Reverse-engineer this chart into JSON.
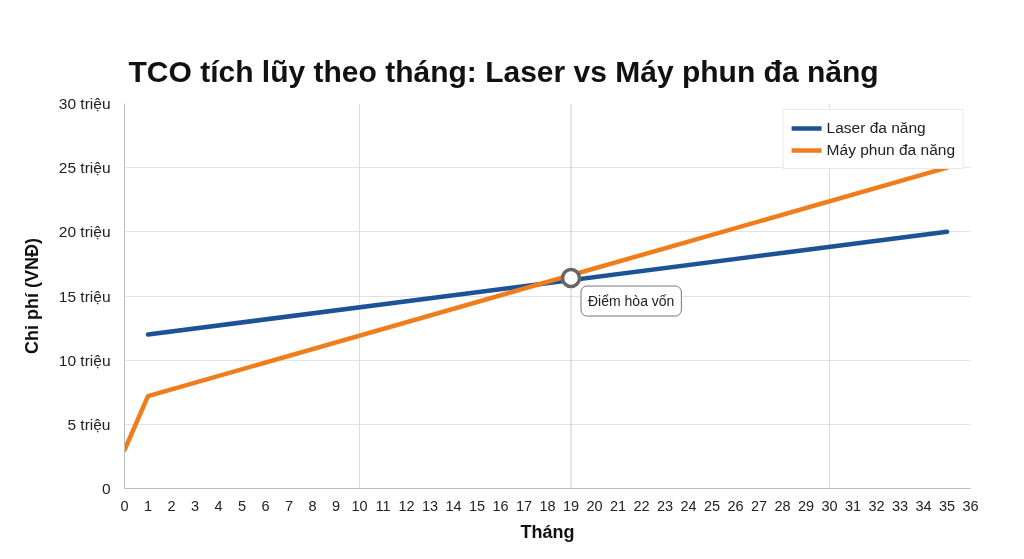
{
  "chart_data": {
    "type": "line",
    "title": "TCO tích lũy theo tháng: Laser vs Máy phun đa năng",
    "xlabel": "Tháng",
    "ylabel": "Chi phí (VNĐ)",
    "series": [
      {
        "name": "Laser đa năng",
        "color": "#1d5396",
        "x": [
          1,
          35
        ],
        "values": [
          12,
          20
        ]
      },
      {
        "name": "Máy phun đa năng",
        "color": "#ef7d1b",
        "x": [
          0,
          1,
          35
        ],
        "values": [
          3,
          7.2,
          25
        ]
      }
    ],
    "xlim": [
      0,
      36
    ],
    "xticks": [
      0,
      1,
      2,
      3,
      4,
      5,
      6,
      7,
      8,
      9,
      10,
      11,
      12,
      13,
      14,
      15,
      16,
      17,
      18,
      19,
      20,
      21,
      22,
      23,
      24,
      25,
      26,
      27,
      28,
      29,
      30,
      31,
      32,
      33,
      34,
      35,
      36
    ],
    "ylim": [
      0,
      30
    ],
    "yticks": [
      0,
      {
        "value": 5,
        "label": "5 triệu"
      },
      {
        "value": 10,
        "label": "10 triệu"
      },
      {
        "value": 15,
        "label": "15 triệu"
      },
      {
        "value": 20,
        "label": "20 triệu"
      },
      {
        "value": 25,
        "label": "25 triệu"
      },
      {
        "value": 30,
        "label": "30 triệu"
      }
    ],
    "grid": "y",
    "legend": "top right",
    "line_style": "solid",
    "marker": "none",
    "ref_lines": [
      {
        "axis": "x",
        "value": 10,
        "color": "#dddddd"
      },
      {
        "axis": "x",
        "value": 19,
        "color": "#cccccc"
      },
      {
        "axis": "x",
        "value": 30,
        "color": "#dddddd"
      }
    ],
    "annotations": [
      {
        "text": "Điểm hòa vốn",
        "x": 19,
        "y": 16.4
      }
    ]
  }
}
